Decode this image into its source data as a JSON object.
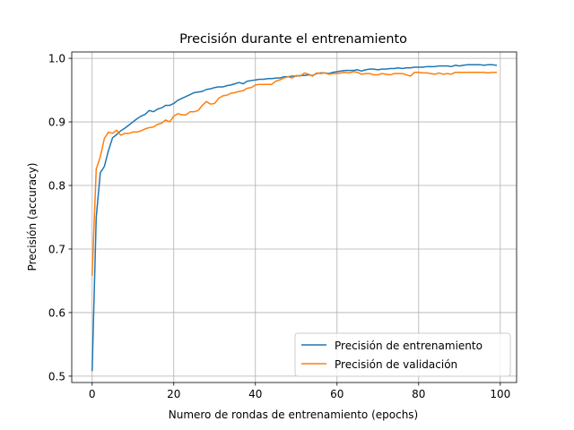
{
  "chart_data": {
    "type": "line",
    "title": "Precisión durante el entrenamiento",
    "xlabel": "Numero de rondas de entrenamiento (epochs)",
    "ylabel": "Precisión (accuracy)",
    "xlim": [
      -5,
      104
    ],
    "ylim": [
      0.49,
      1.01
    ],
    "xticks": [
      0,
      20,
      40,
      60,
      80,
      100
    ],
    "yticks": [
      0.5,
      0.6,
      0.7,
      0.8,
      0.9,
      1.0
    ],
    "xtick_labels": [
      "0",
      "20",
      "40",
      "60",
      "80",
      "100"
    ],
    "ytick_labels": [
      "0.5",
      "0.6",
      "0.7",
      "0.8",
      "0.9",
      "1.0"
    ],
    "grid": true,
    "legend_position": "lower-right",
    "series": [
      {
        "name": "Precisión de entrenamiento",
        "color": "#1f77b4",
        "values": [
          0.509,
          0.75,
          0.82,
          0.83,
          0.855,
          0.875,
          0.88,
          0.886,
          0.89,
          0.895,
          0.9,
          0.905,
          0.909,
          0.912,
          0.918,
          0.916,
          0.92,
          0.922,
          0.926,
          0.926,
          0.929,
          0.934,
          0.937,
          0.94,
          0.943,
          0.946,
          0.947,
          0.948,
          0.951,
          0.952,
          0.954,
          0.955,
          0.955,
          0.957,
          0.958,
          0.96,
          0.962,
          0.96,
          0.964,
          0.965,
          0.966,
          0.967,
          0.967,
          0.968,
          0.968,
          0.969,
          0.969,
          0.971,
          0.971,
          0.972,
          0.972,
          0.973,
          0.973,
          0.974,
          0.973,
          0.976,
          0.977,
          0.977,
          0.976,
          0.978,
          0.979,
          0.98,
          0.981,
          0.981,
          0.981,
          0.982,
          0.98,
          0.982,
          0.983,
          0.983,
          0.982,
          0.983,
          0.983,
          0.984,
          0.984,
          0.985,
          0.984,
          0.985,
          0.985,
          0.986,
          0.986,
          0.986,
          0.987,
          0.987,
          0.987,
          0.988,
          0.988,
          0.988,
          0.987,
          0.989,
          0.988,
          0.989,
          0.99,
          0.99,
          0.99,
          0.99,
          0.989,
          0.99,
          0.99,
          0.989
        ]
      },
      {
        "name": "Precisión de validación",
        "color": "#ff7f0e",
        "values": [
          0.659,
          0.826,
          0.845,
          0.874,
          0.884,
          0.882,
          0.887,
          0.879,
          0.882,
          0.882,
          0.884,
          0.884,
          0.886,
          0.889,
          0.891,
          0.892,
          0.896,
          0.898,
          0.903,
          0.9,
          0.909,
          0.913,
          0.911,
          0.911,
          0.916,
          0.916,
          0.918,
          0.926,
          0.932,
          0.928,
          0.929,
          0.937,
          0.941,
          0.942,
          0.945,
          0.946,
          0.948,
          0.949,
          0.953,
          0.954,
          0.958,
          0.959,
          0.959,
          0.959,
          0.959,
          0.964,
          0.966,
          0.969,
          0.971,
          0.969,
          0.973,
          0.972,
          0.977,
          0.975,
          0.972,
          0.977,
          0.976,
          0.977,
          0.975,
          0.976,
          0.976,
          0.977,
          0.978,
          0.977,
          0.979,
          0.978,
          0.975,
          0.976,
          0.976,
          0.974,
          0.974,
          0.976,
          0.975,
          0.974,
          0.976,
          0.976,
          0.976,
          0.974,
          0.972,
          0.978,
          0.978,
          0.977,
          0.977,
          0.976,
          0.975,
          0.977,
          0.975,
          0.976,
          0.975,
          0.978,
          0.978,
          0.978,
          0.978,
          0.978,
          0.978,
          0.978,
          0.978,
          0.977,
          0.978,
          0.978
        ]
      }
    ]
  }
}
